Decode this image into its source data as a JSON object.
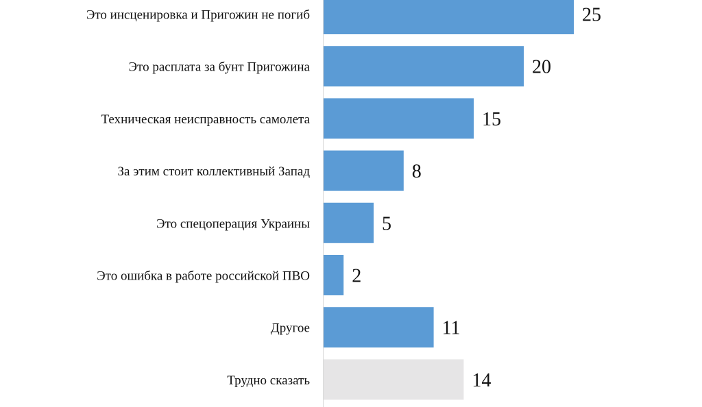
{
  "chart_data": {
    "type": "bar",
    "orientation": "horizontal",
    "title": "",
    "xlabel": "",
    "ylabel": "",
    "categories": [
      "Это инсценировка и Пригожин не погиб",
      "Это расплата за бунт Пригожина",
      "Техническая неисправность самолета",
      "За этим стоит коллективный Запад",
      "Это спецоперация Украины",
      "Это ошибка в работе российской ПВО",
      "Другое",
      "Трудно сказать"
    ],
    "values": [
      25,
      20,
      15,
      8,
      5,
      2,
      11,
      14
    ],
    "value_labels": [
      "25",
      "20",
      "15",
      "8",
      "5",
      "2",
      "11",
      "14"
    ],
    "colors": [
      "#5b9bd5",
      "#5b9bd5",
      "#5b9bd5",
      "#5b9bd5",
      "#5b9bd5",
      "#5b9bd5",
      "#5b9bd5",
      "#e6e5e6"
    ],
    "xlim": [
      0,
      30
    ],
    "grid": false,
    "legend": "none"
  }
}
